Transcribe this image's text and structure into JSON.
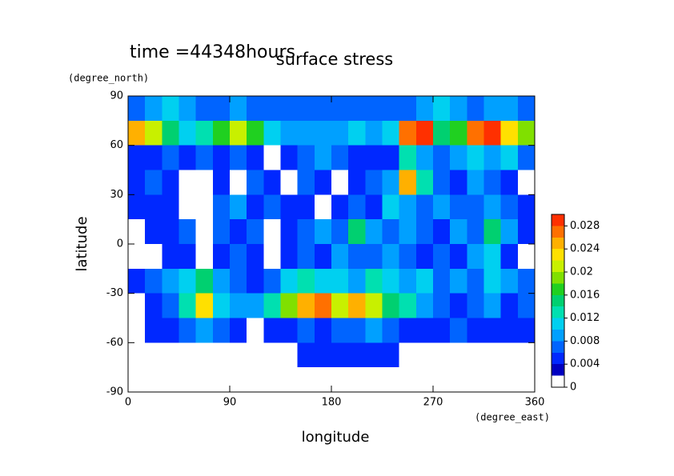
{
  "chart_data": {
    "type": "contour",
    "title": "surface stress",
    "subtitle": "time =44348hours",
    "x_label": "longitude",
    "y_label": "latitude",
    "x_unit": "(degree_east)",
    "y_unit": "(degree_north)",
    "xlim": [
      0,
      360
    ],
    "ylim": [
      -90,
      90
    ],
    "xticks": [
      0,
      90,
      180,
      270,
      360
    ],
    "yticks": [
      -90,
      -60,
      -30,
      0,
      30,
      60,
      90
    ],
    "x": [
      7.5,
      22.5,
      37.5,
      52.5,
      67.5,
      82.5,
      97.5,
      112.5,
      127.5,
      142.5,
      157.5,
      172.5,
      187.5,
      202.5,
      217.5,
      232.5,
      247.5,
      262.5,
      277.5,
      292.5,
      307.5,
      322.5,
      337.5,
      352.5
    ],
    "y": [
      82.5,
      67.5,
      52.5,
      37.5,
      22.5,
      7.5,
      -7.5,
      -22.5,
      -37.5,
      -52.5,
      -67.5,
      -82.5
    ],
    "z": [
      [
        0.006,
        0.008,
        0.01,
        0.008,
        0.006,
        0.006,
        0.008,
        0.006,
        0.006,
        0.006,
        0.006,
        0.006,
        0.006,
        0.006,
        0.006,
        0.006,
        0.006,
        0.008,
        0.01,
        0.008,
        0.006,
        0.008,
        0.008,
        0.006
      ],
      [
        0.024,
        0.02,
        0.014,
        0.01,
        0.012,
        0.016,
        0.02,
        0.016,
        0.01,
        0.008,
        0.008,
        0.008,
        0.008,
        0.01,
        0.008,
        0.01,
        0.026,
        0.028,
        0.014,
        0.016,
        0.026,
        0.028,
        0.022,
        0.018
      ],
      [
        0.004,
        0.004,
        0.006,
        0.004,
        0.006,
        0.004,
        0.006,
        0.004,
        0.001,
        0.004,
        0.006,
        0.008,
        0.006,
        0.004,
        0.004,
        0.004,
        0.012,
        0.008,
        0.006,
        0.008,
        0.01,
        0.008,
        0.01,
        0.006
      ],
      [
        0.004,
        0.006,
        0.004,
        0.001,
        0.001,
        0.004,
        0.001,
        0.006,
        0.004,
        0.001,
        0.006,
        0.004,
        0.001,
        0.004,
        0.006,
        0.008,
        0.024,
        0.012,
        0.006,
        0.004,
        0.008,
        0.006,
        0.004,
        0.001
      ],
      [
        0.004,
        0.004,
        0.004,
        0.001,
        0.001,
        0.006,
        0.008,
        0.004,
        0.006,
        0.004,
        0.004,
        0.001,
        0.004,
        0.006,
        0.004,
        0.01,
        0.008,
        0.006,
        0.008,
        0.006,
        0.006,
        0.008,
        0.006,
        0.004
      ],
      [
        0.001,
        0.004,
        0.004,
        0.006,
        0.001,
        0.006,
        0.004,
        0.006,
        0.001,
        0.004,
        0.006,
        0.008,
        0.006,
        0.014,
        0.008,
        0.006,
        0.008,
        0.006,
        0.004,
        0.008,
        0.006,
        0.014,
        0.008,
        0.004
      ],
      [
        0.001,
        0.001,
        0.004,
        0.004,
        0.001,
        0.004,
        0.006,
        0.004,
        0.001,
        0.004,
        0.006,
        0.004,
        0.008,
        0.006,
        0.006,
        0.008,
        0.006,
        0.004,
        0.006,
        0.004,
        0.008,
        0.01,
        0.004,
        0.001
      ],
      [
        0.004,
        0.006,
        0.008,
        0.01,
        0.014,
        0.008,
        0.006,
        0.004,
        0.006,
        0.01,
        0.012,
        0.01,
        0.01,
        0.008,
        0.012,
        0.01,
        0.008,
        0.01,
        0.006,
        0.008,
        0.006,
        0.01,
        0.008,
        0.006
      ],
      [
        0.001,
        0.004,
        0.006,
        0.012,
        0.022,
        0.01,
        0.008,
        0.008,
        0.012,
        0.018,
        0.024,
        0.026,
        0.02,
        0.024,
        0.02,
        0.014,
        0.012,
        0.008,
        0.006,
        0.004,
        0.006,
        0.008,
        0.004,
        0.006
      ],
      [
        0.001,
        0.004,
        0.004,
        0.006,
        0.008,
        0.006,
        0.004,
        0.001,
        0.004,
        0.004,
        0.006,
        0.004,
        0.006,
        0.006,
        0.008,
        0.006,
        0.004,
        0.004,
        0.004,
        0.006,
        0.004,
        0.004,
        0.004,
        0.004
      ],
      [
        0.001,
        0.001,
        0.001,
        0.001,
        0.001,
        0.001,
        0.001,
        0.001,
        0.001,
        0.001,
        0.004,
        0.004,
        0.004,
        0.004,
        0.004,
        0.004,
        0.001,
        0.001,
        0.001,
        0.001,
        0.001,
        0.001,
        0.001,
        0.001
      ],
      [
        0,
        0,
        0,
        0,
        0,
        0,
        0,
        0,
        0,
        0,
        0,
        0,
        0,
        0,
        0,
        0,
        0,
        0,
        0,
        0,
        0,
        0,
        0,
        0
      ]
    ],
    "colorbar": {
      "levels": [
        0,
        0.002,
        0.004,
        0.006,
        0.008,
        0.01,
        0.012,
        0.014,
        0.016,
        0.018,
        0.02,
        0.022,
        0.024,
        0.026,
        0.028,
        0.03
      ],
      "colors": [
        "#ffffff",
        "#0000c0",
        "#0028ff",
        "#0064ff",
        "#00a0ff",
        "#00d0f0",
        "#00e0b0",
        "#00d070",
        "#20d020",
        "#80e000",
        "#c8f000",
        "#ffe000",
        "#ffb000",
        "#ff7000",
        "#ff3000"
      ],
      "ticks": [
        0,
        0.004,
        0.008,
        0.012,
        0.016,
        0.02,
        0.024,
        0.028
      ]
    }
  }
}
